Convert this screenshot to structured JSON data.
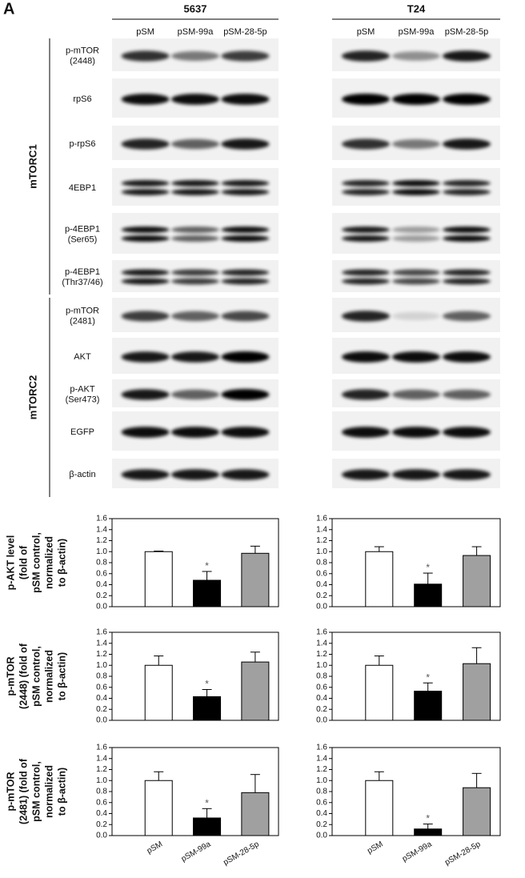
{
  "figure": {
    "panel": "A",
    "cell_lines": [
      {
        "name": "5637",
        "lanes": [
          "pSM",
          "pSM-99a",
          "pSM-28-5p"
        ]
      },
      {
        "name": "T24",
        "lanes": [
          "pSM",
          "pSM-99a",
          "pSM-28-5p"
        ]
      }
    ],
    "groups": [
      {
        "name": "mTORC1",
        "rows": [
          [
            "p-mTOR",
            "(2448)"
          ],
          [
            "rpS6"
          ],
          [
            "p-rpS6"
          ],
          [
            "4EBP1"
          ],
          [
            "p-4EBP1",
            "(Ser65)"
          ],
          [
            "p-4EBP1",
            "(Thr37/46)"
          ]
        ]
      },
      {
        "name": "mTORC2",
        "rows": [
          [
            "p-mTOR",
            "(2481)"
          ],
          [
            "AKT"
          ],
          [
            "p-AKT",
            "(Ser473)"
          ],
          [
            "EGFP"
          ],
          [
            "β-actin"
          ]
        ]
      }
    ]
  },
  "chart_data": [
    {
      "type": "bar",
      "ylabel": [
        "p-AKT level",
        "(fold of",
        "pSM control,",
        "normalized",
        "to β-actin)"
      ],
      "categories": [
        null,
        null,
        null
      ],
      "values": [
        1.0,
        0.48,
        0.97
      ],
      "errors": [
        0.01,
        0.16,
        0.13
      ],
      "significance": [
        null,
        "*",
        null
      ],
      "colors": [
        "#ffffff",
        "#000000",
        "#a0a0a0"
      ],
      "ylim": [
        0,
        1.6
      ],
      "yticks": [
        {
          "value": 0,
          "label": "0.0"
        },
        {
          "value": 0.2,
          "label": "0.2"
        },
        {
          "value": 0.4,
          "label": "0.4"
        },
        {
          "value": 0.6,
          "label": "0.6"
        },
        {
          "value": 0.8,
          "label": "0.8"
        },
        {
          "value": 1,
          "label": "1.0"
        },
        {
          "value": 1.2,
          "label": "1.2"
        },
        {
          "value": 1.4,
          "label": "1.4"
        },
        {
          "value": 1.6,
          "label": "1.6"
        }
      ]
    },
    {
      "type": "bar",
      "categories": [
        null,
        null,
        null
      ],
      "values": [
        1.0,
        0.41,
        0.93
      ],
      "errors": [
        0.09,
        0.2,
        0.16
      ],
      "significance": [
        null,
        "*",
        null
      ],
      "colors": [
        "#ffffff",
        "#000000",
        "#a0a0a0"
      ],
      "ylim": [
        0,
        1.6
      ],
      "yticks": [
        {
          "value": 0,
          "label": "0.0"
        },
        {
          "value": 0.2,
          "label": "0.2"
        },
        {
          "value": 0.4,
          "label": "0.4"
        },
        {
          "value": 0.6,
          "label": "0.6"
        },
        {
          "value": 0.8,
          "label": "0.8"
        },
        {
          "value": 1,
          "label": "1.0"
        },
        {
          "value": 1.2,
          "label": "1.2"
        },
        {
          "value": 1.4,
          "label": "1.4"
        },
        {
          "value": 1.6,
          "label": "1.6"
        }
      ]
    },
    {
      "type": "bar",
      "ylabel": [
        "p-mTOR",
        "(2448) (fold of",
        "pSM control,",
        "normalized",
        "to β-actin)"
      ],
      "categories": [
        null,
        null,
        null
      ],
      "values": [
        1.0,
        0.43,
        1.06
      ],
      "errors": [
        0.17,
        0.13,
        0.18
      ],
      "significance": [
        null,
        "*",
        null
      ],
      "colors": [
        "#ffffff",
        "#000000",
        "#a0a0a0"
      ],
      "ylim": [
        0,
        1.6
      ],
      "yticks": [
        {
          "value": 0,
          "label": "0.0"
        },
        {
          "value": 0.2,
          "label": "0.2"
        },
        {
          "value": 0.4,
          "label": "0.4"
        },
        {
          "value": 0.6,
          "label": "0.6"
        },
        {
          "value": 0.8,
          "label": "0.8"
        },
        {
          "value": 1,
          "label": "1.0"
        },
        {
          "value": 1.2,
          "label": "1.2"
        },
        {
          "value": 1.4,
          "label": "1.4"
        },
        {
          "value": 1.6,
          "label": "1.6"
        }
      ]
    },
    {
      "type": "bar",
      "categories": [
        null,
        null,
        null
      ],
      "values": [
        1.0,
        0.53,
        1.03
      ],
      "errors": [
        0.17,
        0.15,
        0.29
      ],
      "significance": [
        null,
        "*",
        null
      ],
      "colors": [
        "#ffffff",
        "#000000",
        "#a0a0a0"
      ],
      "ylim": [
        0,
        1.6
      ],
      "yticks": [
        {
          "value": 0,
          "label": "0.0"
        },
        {
          "value": 0.2,
          "label": "0.2"
        },
        {
          "value": 0.4,
          "label": "0.4"
        },
        {
          "value": 0.6,
          "label": "0.6"
        },
        {
          "value": 0.8,
          "label": "0.8"
        },
        {
          "value": 1,
          "label": "1.0"
        },
        {
          "value": 1.2,
          "label": "1.2"
        },
        {
          "value": 1.4,
          "label": "1.4"
        },
        {
          "value": 1.6,
          "label": "1.6"
        }
      ]
    },
    {
      "type": "bar",
      "ylabel": [
        "p-mTOR",
        "(2481) (fold of",
        "pSM control,",
        "normalized",
        "to β-actin)"
      ],
      "categories": [
        "pSM",
        "pSM-99a",
        "pSM-28-5p"
      ],
      "values": [
        1.0,
        0.32,
        0.78
      ],
      "errors": [
        0.16,
        0.17,
        0.33
      ],
      "significance": [
        null,
        "*",
        null
      ],
      "colors": [
        "#ffffff",
        "#000000",
        "#a0a0a0"
      ],
      "ylim": [
        0,
        1.6
      ],
      "yticks": [
        {
          "value": 0,
          "label": "0.0"
        },
        {
          "value": 0.2,
          "label": "0.2"
        },
        {
          "value": 0.4,
          "label": "0.4"
        },
        {
          "value": 0.6,
          "label": "0.6"
        },
        {
          "value": 0.8,
          "label": "0.8"
        },
        {
          "value": 1,
          "label": "1.0"
        },
        {
          "value": 1.2,
          "label": "1.2"
        },
        {
          "value": 1.4,
          "label": "1.4"
        },
        {
          "value": 1.6,
          "label": "1.6"
        }
      ]
    },
    {
      "type": "bar",
      "categories": [
        "pSM",
        "pSM-99a",
        "pSM-28-5p"
      ],
      "values": [
        1.0,
        0.12,
        0.87
      ],
      "errors": [
        0.16,
        0.09,
        0.26
      ],
      "significance": [
        null,
        "*",
        null
      ],
      "colors": [
        "#ffffff",
        "#000000",
        "#a0a0a0"
      ],
      "ylim": [
        0,
        1.6
      ],
      "yticks": [
        {
          "value": 0,
          "label": "0.0"
        },
        {
          "value": 0.2,
          "label": "0.2"
        },
        {
          "value": 0.4,
          "label": "0.4"
        },
        {
          "value": 0.6,
          "label": "0.6"
        },
        {
          "value": 0.8,
          "label": "0.8"
        },
        {
          "value": 1,
          "label": "1.0"
        },
        {
          "value": 1.2,
          "label": "1.2"
        },
        {
          "value": 1.4,
          "label": "1.4"
        },
        {
          "value": 1.6,
          "label": "1.6"
        }
      ]
    }
  ]
}
